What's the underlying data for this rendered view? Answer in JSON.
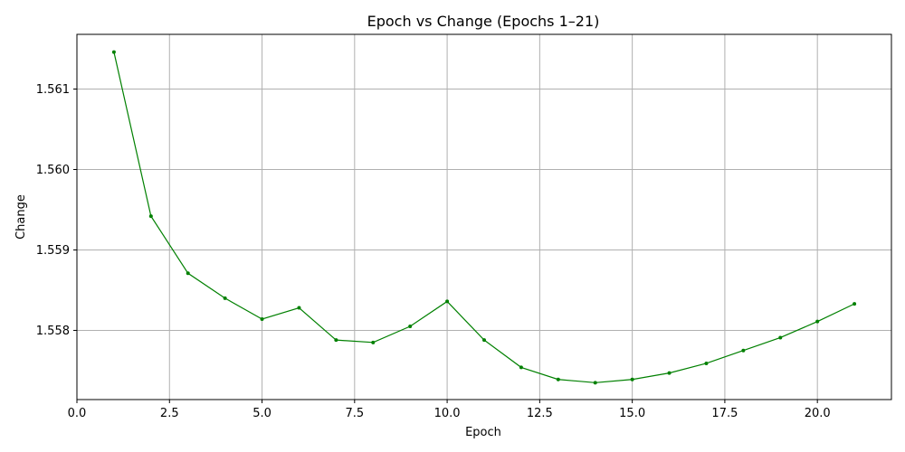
{
  "chart_data": {
    "type": "line",
    "title": "Epoch vs Change (Epochs 1–21)",
    "xlabel": "Epoch",
    "ylabel": "Change",
    "xlim": [
      0,
      22
    ],
    "ylim": [
      1.55714,
      1.56168
    ],
    "x_ticks": [
      0.0,
      2.5,
      5.0,
      7.5,
      10.0,
      12.5,
      15.0,
      17.5,
      20.0
    ],
    "x_tick_labels": [
      "0.0",
      "2.5",
      "5.0",
      "7.5",
      "10.0",
      "12.5",
      "15.0",
      "17.5",
      "20.0"
    ],
    "y_ticks": [
      1.558,
      1.559,
      1.56,
      1.561
    ],
    "y_tick_labels": [
      "1.558",
      "1.559",
      "1.560",
      "1.561"
    ],
    "grid": true,
    "series": [
      {
        "color": "#008000",
        "marker": "dot",
        "x": [
          1,
          2,
          3,
          4,
          5,
          6,
          7,
          8,
          9,
          10,
          11,
          12,
          13,
          14,
          15,
          16,
          17,
          18,
          19,
          20,
          21
        ],
        "y": [
          1.56146,
          1.55942,
          1.55871,
          1.5584,
          1.55814,
          1.55828,
          1.55788,
          1.55785,
          1.55805,
          1.55836,
          1.55788,
          1.55754,
          1.55739,
          1.55735,
          1.55739,
          1.55747,
          1.55759,
          1.55775,
          1.55791,
          1.55811,
          1.55833
        ]
      }
    ]
  }
}
